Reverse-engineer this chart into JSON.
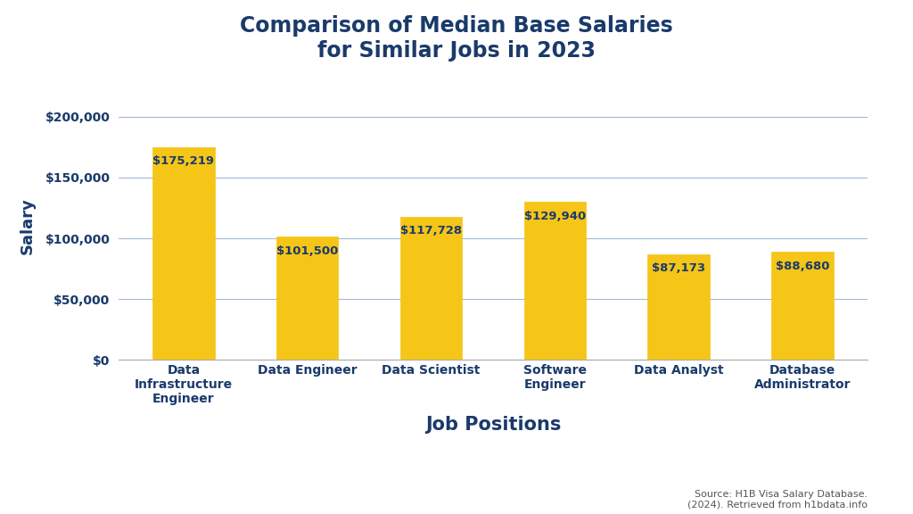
{
  "title": "Comparison of Median Base Salaries\nfor Similar Jobs in 2023",
  "xlabel": "Job Positions",
  "ylabel": "Salary",
  "categories": [
    "Data\nInfrastructure\nEngineer",
    "Data Engineer",
    "Data Scientist",
    "Software\nEngineer",
    "Data Analyst",
    "Database\nAdministrator"
  ],
  "values": [
    175219,
    101500,
    117728,
    129940,
    87173,
    88680
  ],
  "bar_color": "#F5C518",
  "bar_edge_color": "#F5C518",
  "title_color": "#1a3a6b",
  "axis_label_color": "#1a3a6b",
  "tick_label_color": "#1a3a6b",
  "value_label_color": "#1a3a6b",
  "grid_color": "#a0b8d8",
  "background_color": "#ffffff",
  "ylim": [
    0,
    220000
  ],
  "yticks": [
    0,
    50000,
    100000,
    150000,
    200000
  ],
  "source_text": "Source: H1B Visa Salary Database.\n(2024). Retrieved from h1bdata.info",
  "title_fontsize": 17,
  "xlabel_fontsize": 15,
  "ylabel_fontsize": 13,
  "tick_fontsize": 10,
  "value_fontsize": 9.5,
  "source_fontsize": 8
}
